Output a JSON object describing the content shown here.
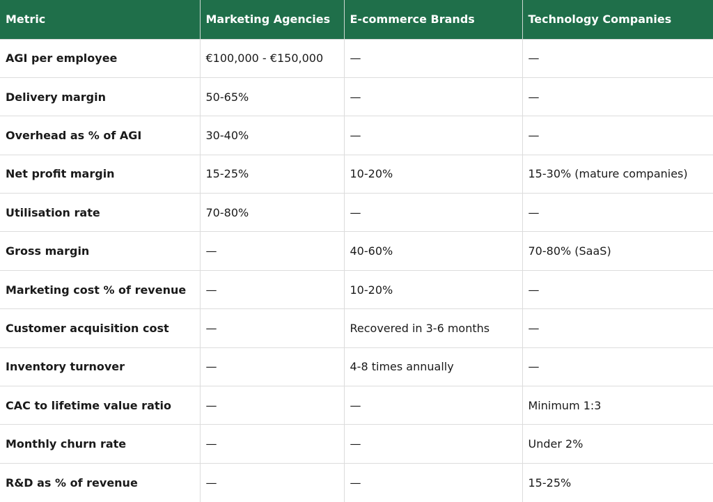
{
  "table": {
    "headers": [
      "Metric",
      "Marketing Agencies",
      "E-commerce Brands",
      "Technology Companies"
    ],
    "rows": [
      [
        "AGI per employee",
        "€100,000 - €150,000",
        "—",
        "—"
      ],
      [
        "Delivery margin",
        "50-65%",
        "—",
        "—"
      ],
      [
        "Overhead as % of AGI",
        "30-40%",
        "—",
        "—"
      ],
      [
        "Net profit margin",
        "15-25%",
        "10-20%",
        "15-30% (mature companies)"
      ],
      [
        "Utilisation rate",
        "70-80%",
        "—",
        "—"
      ],
      [
        "Gross margin",
        "—",
        "40-60%",
        "70-80% (SaaS)"
      ],
      [
        "Marketing cost % of revenue",
        "—",
        "10-20%",
        "—"
      ],
      [
        "Customer acquisition cost",
        "—",
        "Recovered in 3-6 months",
        "—"
      ],
      [
        "Inventory turnover",
        "—",
        "4-8 times annually",
        "—"
      ],
      [
        "CAC to lifetime value ratio",
        "—",
        "—",
        "Minimum 1:3"
      ],
      [
        "Monthly churn rate",
        "—",
        "—",
        "Under 2%"
      ],
      [
        "R&D as % of revenue",
        "—",
        "—",
        "15-25%"
      ]
    ]
  },
  "colors": {
    "header_bg": "#1f6f4a",
    "header_text": "#ffffff",
    "grid": "#dcdcdc"
  }
}
